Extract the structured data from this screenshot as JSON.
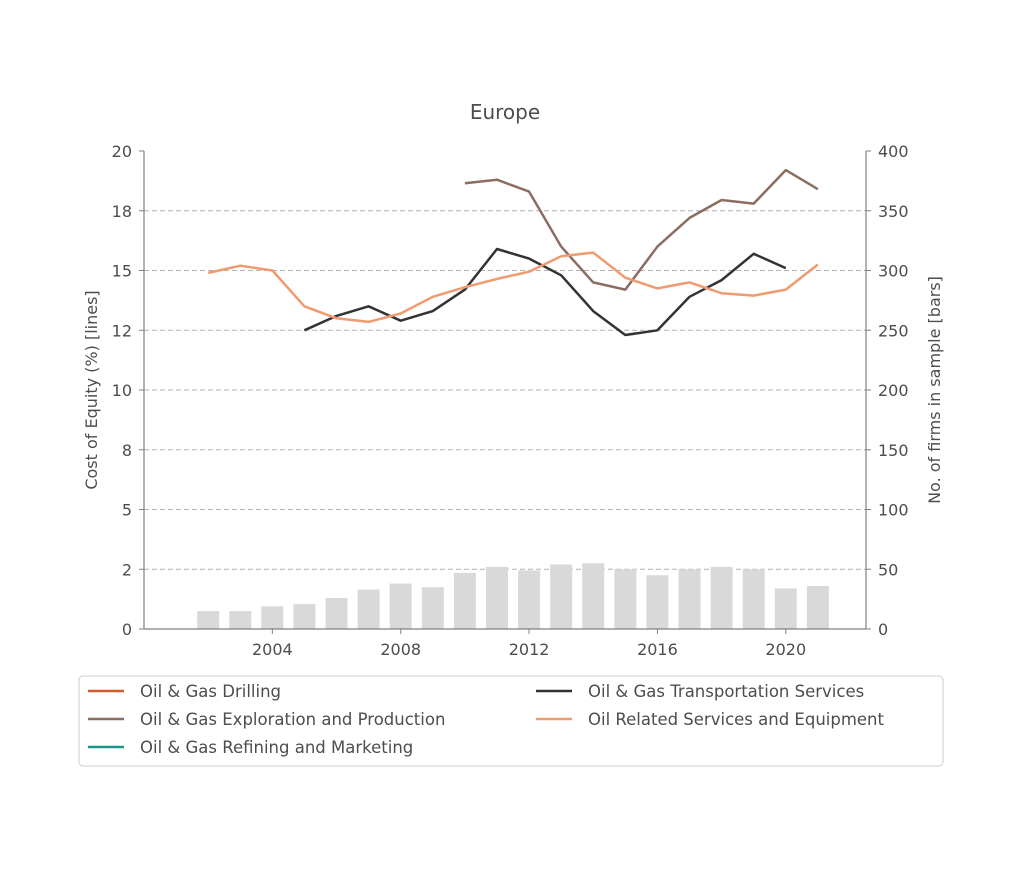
{
  "chart_data": {
    "type": "line",
    "title": "Europe",
    "ylabel_left": "Cost of Equity (%)  [lines]",
    "ylabel_right": "No. of firms in sample  [bars]",
    "x": [
      2002,
      2003,
      2004,
      2005,
      2006,
      2007,
      2008,
      2009,
      2010,
      2011,
      2012,
      2013,
      2014,
      2015,
      2016,
      2017,
      2018,
      2019,
      2020,
      2021
    ],
    "xlim": [
      2000,
      2022.5
    ],
    "xticks": [
      2004,
      2008,
      2012,
      2016,
      2020
    ],
    "ylim_left": [
      0,
      20
    ],
    "yticks_left": [
      0,
      2,
      5,
      8,
      10,
      12,
      15,
      18,
      20
    ],
    "ylim_right": [
      0,
      400
    ],
    "yticks_right": [
      0,
      50,
      100,
      150,
      200,
      250,
      300,
      350,
      400
    ],
    "grid": "horizontal-dashed",
    "legend_position": "bottom",
    "bars": {
      "name": "No. of firms in sample",
      "color": "#d9d9d9",
      "values": [
        15,
        15,
        19,
        21,
        26,
        33,
        38,
        35,
        47,
        52,
        49,
        54,
        55,
        50,
        45,
        50,
        52,
        50,
        34,
        36
      ]
    },
    "series": [
      {
        "name": "Oil & Gas Drilling",
        "color": "#d4592a",
        "values": [
          null,
          null,
          null,
          null,
          null,
          null,
          null,
          null,
          null,
          null,
          null,
          null,
          null,
          null,
          null,
          null,
          null,
          null,
          null,
          null
        ]
      },
      {
        "name": "Oil & Gas Exploration and Production",
        "color": "#8c6d62",
        "values": [
          null,
          null,
          null,
          null,
          null,
          null,
          null,
          null,
          18.65,
          18.8,
          18.3,
          16.0,
          14.5,
          14.2,
          16.0,
          17.2,
          17.95,
          17.8,
          19.2,
          18.4
        ]
      },
      {
        "name": "Oil & Gas Refining and Marketing",
        "color": "#1a9688",
        "values": [
          null,
          null,
          null,
          null,
          null,
          null,
          null,
          null,
          null,
          null,
          null,
          null,
          null,
          null,
          null,
          null,
          null,
          null,
          null,
          null
        ]
      },
      {
        "name": "Oil & Gas Transportation Services",
        "color": "#333333",
        "values": [
          null,
          null,
          null,
          12.5,
          13.1,
          13.5,
          12.9,
          13.3,
          14.2,
          15.9,
          15.5,
          14.8,
          13.3,
          12.3,
          12.5,
          13.9,
          14.6,
          15.7,
          15.1,
          null
        ]
      },
      {
        "name": "Oil Related Services and Equipment",
        "color": "#f09a70",
        "values": [
          14.9,
          15.2,
          15.0,
          13.5,
          13.0,
          12.85,
          13.2,
          13.9,
          14.3,
          14.65,
          14.95,
          15.6,
          15.75,
          14.7,
          14.25,
          14.5,
          14.05,
          13.95,
          14.2,
          15.25
        ]
      }
    ]
  }
}
